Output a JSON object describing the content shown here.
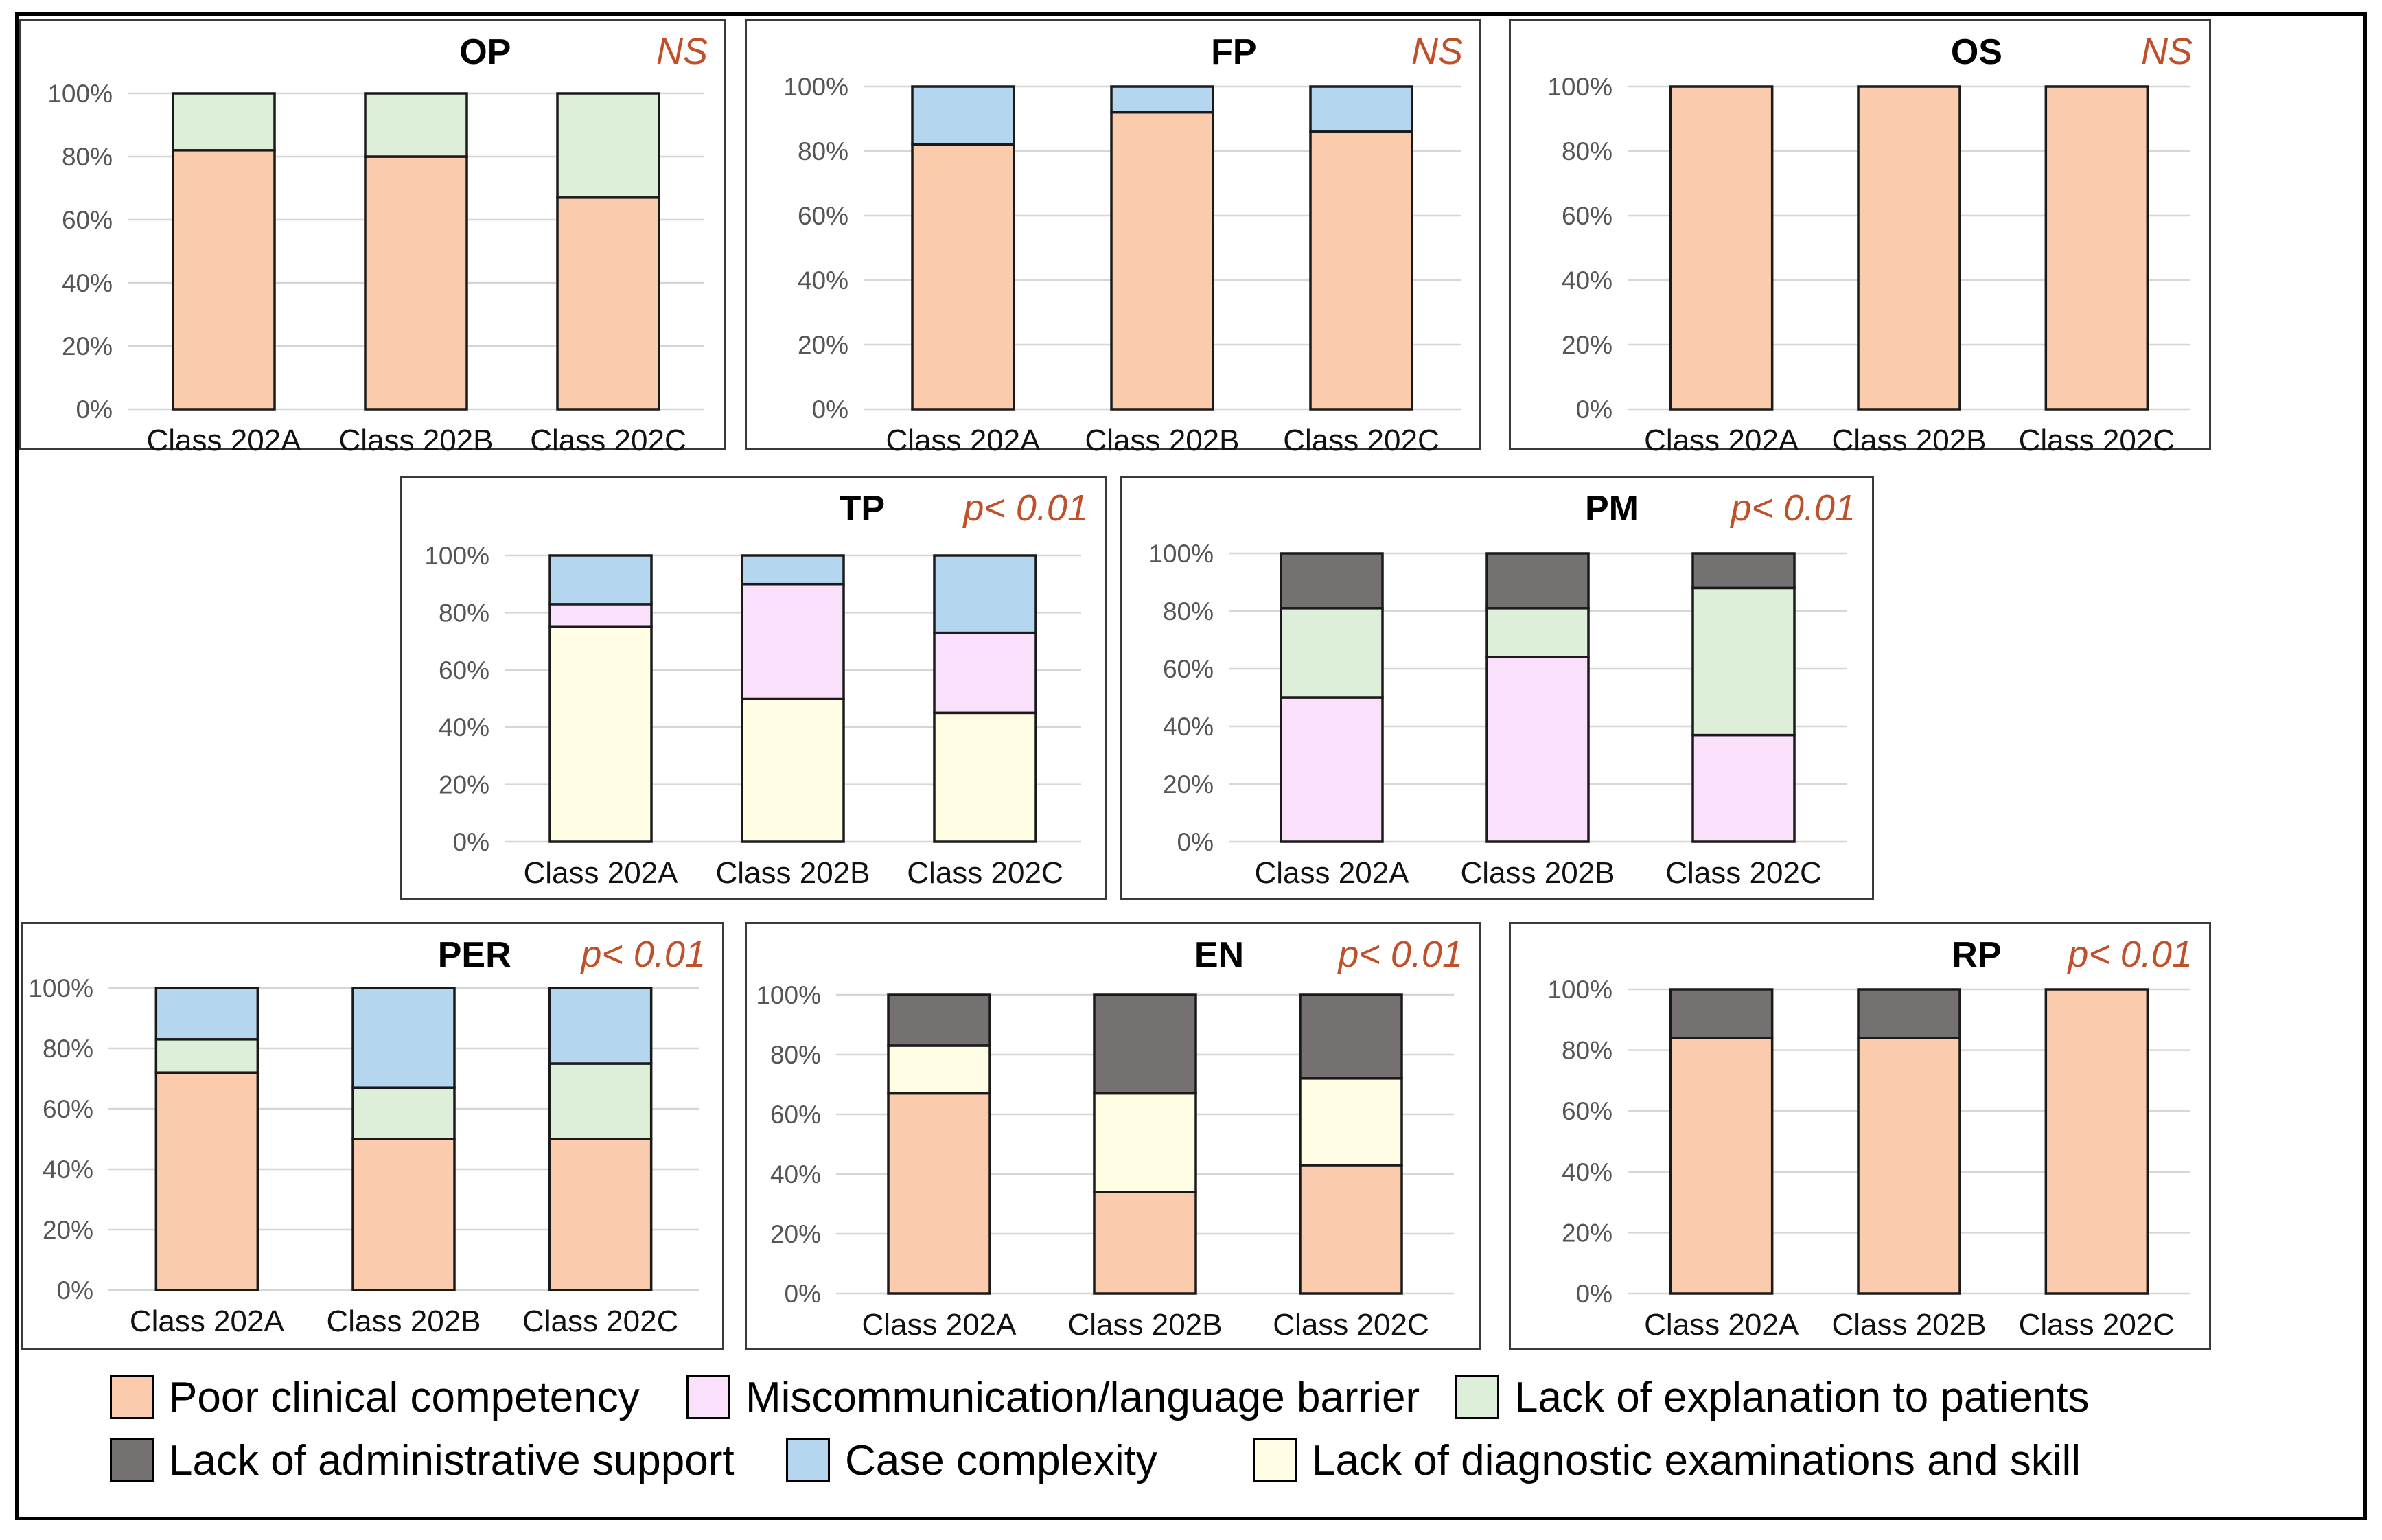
{
  "figure": {
    "categories": [
      "Class 202A",
      "Class 202B",
      "Class 202C"
    ],
    "y_ticks": [
      "0%",
      "20%",
      "40%",
      "60%",
      "80%",
      "100%"
    ]
  },
  "legend": {
    "items": [
      {
        "key": "poor_clinical",
        "label": "Poor clinical  competency",
        "color": "#FBCBAE"
      },
      {
        "key": "miscommunication",
        "label": "Miscommunication/language barrier",
        "color": "#FBE0FB"
      },
      {
        "key": "lack_explanation",
        "label": "Lack of explanation to patients",
        "color": "#DDEFD9"
      },
      {
        "key": "lack_admin",
        "label": "Lack of administrative support",
        "color": "#767171"
      },
      {
        "key": "case_complexity",
        "label": "Case complexity",
        "color": "#B4D6EE"
      },
      {
        "key": "lack_diagnostic",
        "label": "Lack of diagnostic examinations and skill",
        "color": "#FFFDE3"
      }
    ]
  },
  "chart_data": [
    {
      "id": "op",
      "type": "bar",
      "stacked": true,
      "title": "OP",
      "significance": "NS",
      "categories": [
        "Class 202A",
        "Class 202B",
        "Class 202C"
      ],
      "ylim": [
        0,
        100
      ],
      "series": [
        {
          "key": "poor_clinical",
          "name": "Poor clinical competency",
          "values": [
            82,
            80,
            67
          ]
        },
        {
          "key": "lack_explanation",
          "name": "Lack of explanation to patients",
          "values": [
            18,
            20,
            33
          ]
        }
      ]
    },
    {
      "id": "fp",
      "type": "bar",
      "stacked": true,
      "title": "FP",
      "significance": "NS",
      "categories": [
        "Class 202A",
        "Class 202B",
        "Class 202C"
      ],
      "ylim": [
        0,
        100
      ],
      "series": [
        {
          "key": "poor_clinical",
          "name": "Poor clinical competency",
          "values": [
            82,
            92,
            86
          ]
        },
        {
          "key": "case_complexity",
          "name": "Case complexity",
          "values": [
            18,
            8,
            14
          ]
        }
      ]
    },
    {
      "id": "os",
      "type": "bar",
      "stacked": true,
      "title": "OS",
      "significance": "NS",
      "categories": [
        "Class 202A",
        "Class 202B",
        "Class 202C"
      ],
      "ylim": [
        0,
        100
      ],
      "series": [
        {
          "key": "poor_clinical",
          "name": "Poor clinical competency",
          "values": [
            100,
            100,
            100
          ]
        }
      ]
    },
    {
      "id": "tp",
      "type": "bar",
      "stacked": true,
      "title": "TP",
      "significance": "p< 0.01",
      "categories": [
        "Class 202A",
        "Class 202B",
        "Class 202C"
      ],
      "ylim": [
        0,
        100
      ],
      "series": [
        {
          "key": "lack_diagnostic",
          "name": "Lack of diagnostic examinations and skill",
          "values": [
            75,
            50,
            45
          ]
        },
        {
          "key": "miscommunication",
          "name": "Miscommunication/language barrier",
          "values": [
            8,
            40,
            28
          ]
        },
        {
          "key": "case_complexity",
          "name": "Case complexity",
          "values": [
            17,
            10,
            27
          ]
        }
      ]
    },
    {
      "id": "pm",
      "type": "bar",
      "stacked": true,
      "title": "PM",
      "significance": "p< 0.01",
      "categories": [
        "Class 202A",
        "Class 202B",
        "Class 202C"
      ],
      "ylim": [
        0,
        100
      ],
      "series": [
        {
          "key": "miscommunication",
          "name": "Miscommunication/language barrier",
          "values": [
            50,
            64,
            37
          ]
        },
        {
          "key": "lack_explanation",
          "name": "Lack of explanation to patients",
          "values": [
            31,
            17,
            51
          ]
        },
        {
          "key": "lack_admin",
          "name": "Lack of administrative support",
          "values": [
            19,
            19,
            12
          ]
        }
      ]
    },
    {
      "id": "per",
      "type": "bar",
      "stacked": true,
      "title": "PER",
      "significance": "p< 0.01",
      "categories": [
        "Class 202A",
        "Class 202B",
        "Class 202C"
      ],
      "ylim": [
        0,
        100
      ],
      "series": [
        {
          "key": "poor_clinical",
          "name": "Poor clinical competency",
          "values": [
            72,
            50,
            50
          ]
        },
        {
          "key": "lack_explanation",
          "name": "Lack of explanation to patients",
          "values": [
            11,
            17,
            25
          ]
        },
        {
          "key": "case_complexity",
          "name": "Case complexity",
          "values": [
            17,
            33,
            25
          ]
        }
      ]
    },
    {
      "id": "en",
      "type": "bar",
      "stacked": true,
      "title": "EN",
      "significance": "p< 0.01",
      "categories": [
        "Class 202A",
        "Class 202B",
        "Class 202C"
      ],
      "ylim": [
        0,
        100
      ],
      "series": [
        {
          "key": "poor_clinical",
          "name": "Poor clinical competency",
          "values": [
            67,
            34,
            43
          ]
        },
        {
          "key": "lack_diagnostic",
          "name": "Lack of diagnostic examinations and skill",
          "values": [
            16,
            33,
            29
          ]
        },
        {
          "key": "lack_admin",
          "name": "Lack of administrative support",
          "values": [
            17,
            33,
            28
          ]
        }
      ]
    },
    {
      "id": "rp",
      "type": "bar",
      "stacked": true,
      "title": "RP",
      "significance": "p< 0.01",
      "categories": [
        "Class 202A",
        "Class 202B",
        "Class 202C"
      ],
      "ylim": [
        0,
        100
      ],
      "series": [
        {
          "key": "poor_clinical",
          "name": "Poor clinical competency",
          "values": [
            84,
            84,
            100
          ]
        },
        {
          "key": "lack_admin",
          "name": "Lack of administrative support",
          "values": [
            16,
            16,
            0
          ]
        }
      ]
    }
  ]
}
